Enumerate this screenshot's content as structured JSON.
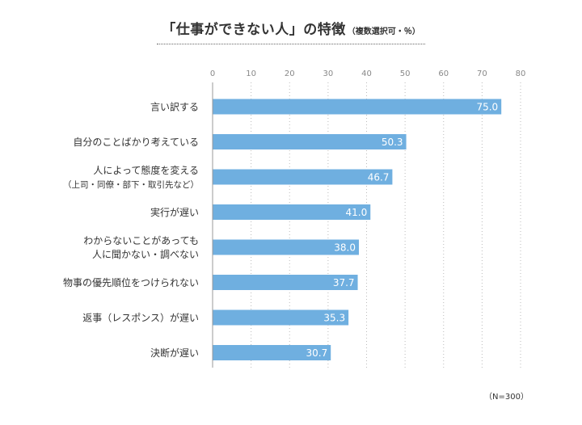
{
  "chart_data": {
    "type": "bar",
    "orientation": "horizontal",
    "title": "「仕事ができない人」の特徴",
    "subtitle": "（複数選択可・％）",
    "note": "（N=300）",
    "categories": [
      [
        "言い訳する"
      ],
      [
        "自分のことばかり考えている"
      ],
      [
        "人によって態度を変える",
        "（上司・同僚・部下・取引先など）"
      ],
      [
        "実行が遅い"
      ],
      [
        "わからないことがあっても",
        "人に聞かない・調べない"
      ],
      [
        "物事の優先順位をつけられない"
      ],
      [
        "返事（レスポンス）が遅い"
      ],
      [
        "決断が遅い"
      ]
    ],
    "values": [
      75.0,
      50.3,
      46.7,
      41.0,
      38.0,
      37.7,
      35.3,
      30.7
    ],
    "value_labels": [
      "75.0",
      "50.3",
      "46.7",
      "41.0",
      "38.0",
      "37.7",
      "35.3",
      "30.7"
    ],
    "xlim": [
      0,
      80
    ],
    "xticks": [
      0,
      10,
      20,
      30,
      40,
      50,
      60,
      70,
      80
    ],
    "xtick_labels": [
      "0",
      "10",
      "20",
      "30",
      "40",
      "50",
      "60",
      "70",
      "80"
    ],
    "axis_position": "top",
    "grid": "vertical-dotted",
    "bar_color": "#6fafe0",
    "label_color": "#ffffff",
    "grid_color": "#bbbbbb"
  }
}
